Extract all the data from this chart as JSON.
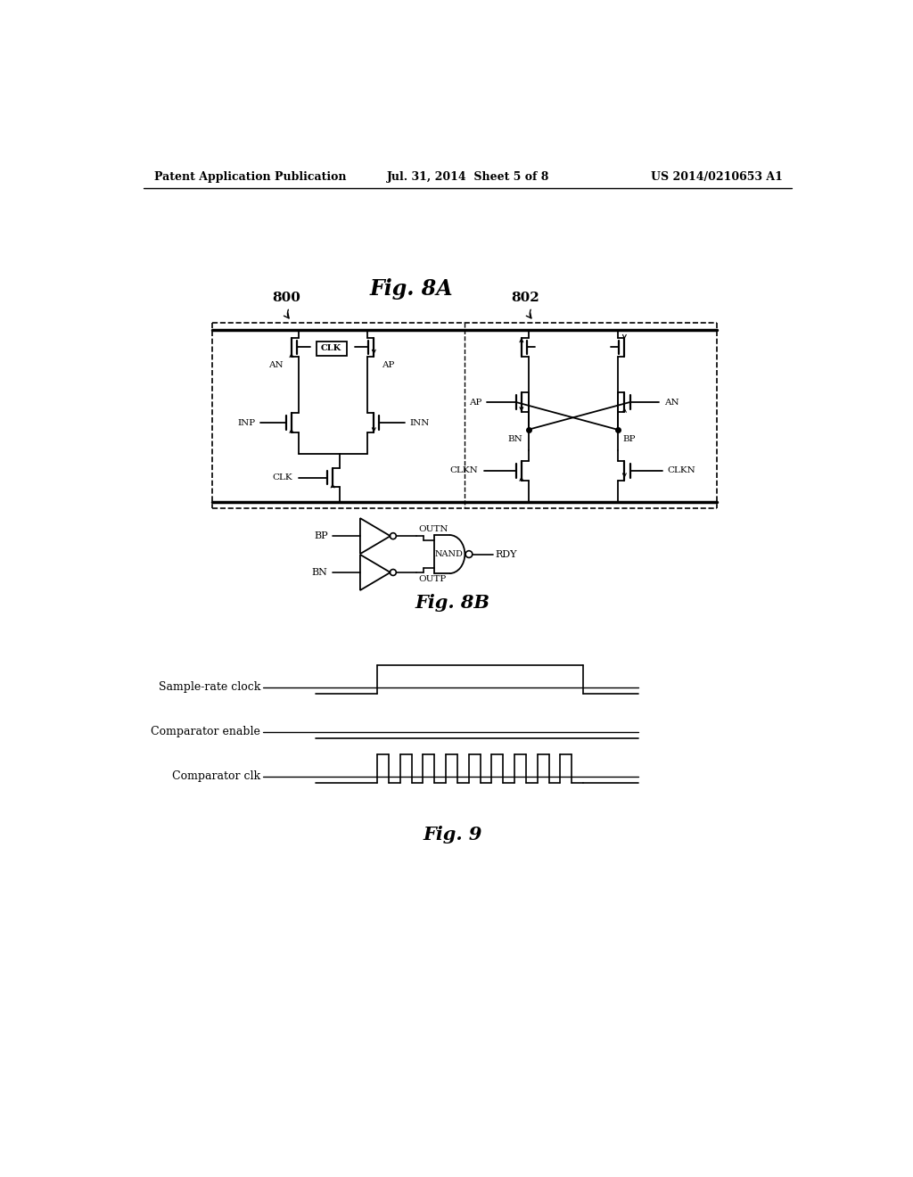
{
  "header_left": "Patent Application Publication",
  "header_mid": "Jul. 31, 2014  Sheet 5 of 8",
  "header_right": "US 2014/0210653 A1",
  "fig8A_label": "Fig. 8A",
  "fig8B_label": "Fig. 8B",
  "fig9_label": "Fig. 9",
  "label_800": "800",
  "label_802": "802",
  "timing_labels": [
    "Sample-rate clock",
    "Comparator enable",
    "Comparator clk"
  ],
  "bg_color": "#ffffff",
  "line_color": "#000000"
}
